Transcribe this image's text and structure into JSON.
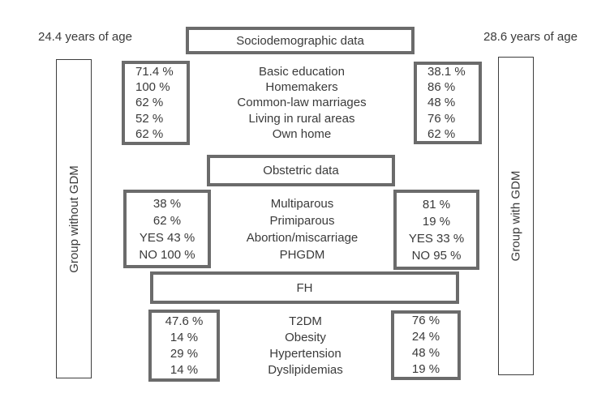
{
  "figure": {
    "left_age": "24.4 years of age",
    "right_age": "28.6 years of age",
    "left_group": "Group without GDM",
    "right_group": "Group with GDM"
  },
  "sociodemographic": {
    "title": "Sociodemographic data",
    "left": [
      "71.4 %",
      "100 %",
      "62 %",
      "52 %",
      "62 %"
    ],
    "labels": [
      "Basic education",
      "Homemakers",
      "Common-law marriages",
      "Living in rural areas",
      "Own home"
    ],
    "right": [
      "38.1 %",
      "86 %",
      "48 %",
      "76 %",
      "62 %"
    ]
  },
  "obstetric": {
    "title": "Obstetric data",
    "left": [
      "38 %",
      "62 %",
      "YES 43 %",
      "NO 100 %"
    ],
    "labels": [
      "Multiparous",
      "Primiparous",
      "Abortion/miscarriage",
      "PHGDM"
    ],
    "right": [
      "81 %",
      "19 %",
      "YES 33 %",
      "NO 95 %"
    ]
  },
  "fh": {
    "title": "FH",
    "left": [
      "47.6 %",
      "14 %",
      "29 %",
      "14 %"
    ],
    "labels": [
      "T2DM",
      "Obesity",
      "Hypertension",
      "Dyslipidemias"
    ],
    "right": [
      "76 %",
      "24 %",
      "48 %",
      "19 %"
    ]
  },
  "colors": {
    "box_border": "#6b6b6b",
    "bar_border": "#3d3d3d",
    "text": "#3a3a3a",
    "background": "#ffffff"
  }
}
